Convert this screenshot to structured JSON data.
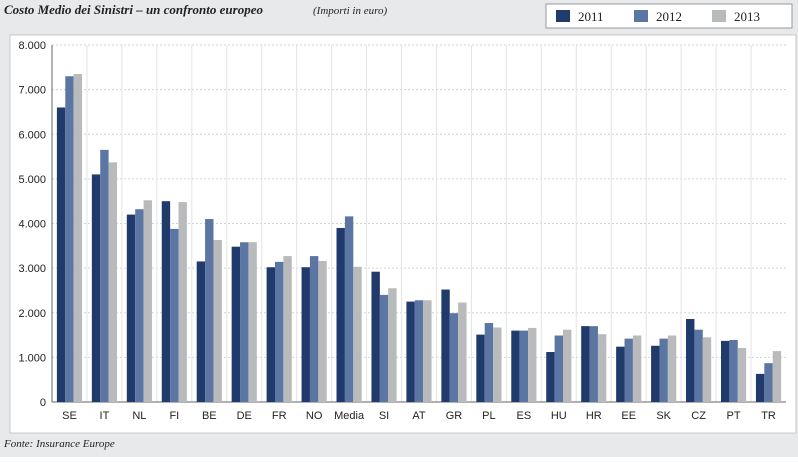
{
  "chart_data": {
    "type": "bar",
    "title": "Costo Medio dei Sinistri – un confronto europeo",
    "subtitle": "(Importi in euro)",
    "source": "Fonte: Insurance Europe",
    "categories": [
      "SE",
      "IT",
      "NL",
      "FI",
      "BE",
      "DE",
      "FR",
      "NO",
      "Media",
      "SI",
      "AT",
      "GR",
      "PL",
      "ES",
      "HU",
      "HR",
      "EE",
      "SK",
      "CZ",
      "PT",
      "TR"
    ],
    "series": [
      {
        "name": "2011",
        "color": "#1f3a6b",
        "values": [
          6600,
          5100,
          4200,
          4500,
          3150,
          3480,
          3020,
          3020,
          3900,
          2920,
          2250,
          2520,
          1510,
          1600,
          1120,
          1700,
          1240,
          1260,
          1860,
          1370,
          630
        ]
      },
      {
        "name": "2012",
        "color": "#5b76a3",
        "values": [
          7300,
          5650,
          4320,
          3880,
          4100,
          3580,
          3140,
          3270,
          4160,
          2400,
          2280,
          1990,
          1770,
          1600,
          1490,
          1700,
          1420,
          1420,
          1620,
          1390,
          870
        ]
      },
      {
        "name": "2013",
        "color": "#b9babc",
        "values": [
          7350,
          5370,
          4520,
          4480,
          3630,
          3580,
          3270,
          3160,
          3030,
          2550,
          2280,
          2230,
          1670,
          1660,
          1620,
          1520,
          1490,
          1490,
          1450,
          1210,
          1140
        ]
      }
    ],
    "ylim": [
      0,
      8000
    ],
    "yticks": [
      0,
      {
        "value": 1000,
        "label": "1.000"
      },
      {
        "value": 2000,
        "label": "2.000"
      },
      {
        "value": 3000,
        "label": "3.000"
      },
      {
        "value": 4000,
        "label": "4.000"
      },
      {
        "value": 5000,
        "label": "5.000"
      },
      {
        "value": 6000,
        "label": "6.000"
      },
      {
        "value": 7000,
        "label": "7.000"
      },
      {
        "value": 8000,
        "label": "8.000"
      }
    ],
    "grid": true
  }
}
